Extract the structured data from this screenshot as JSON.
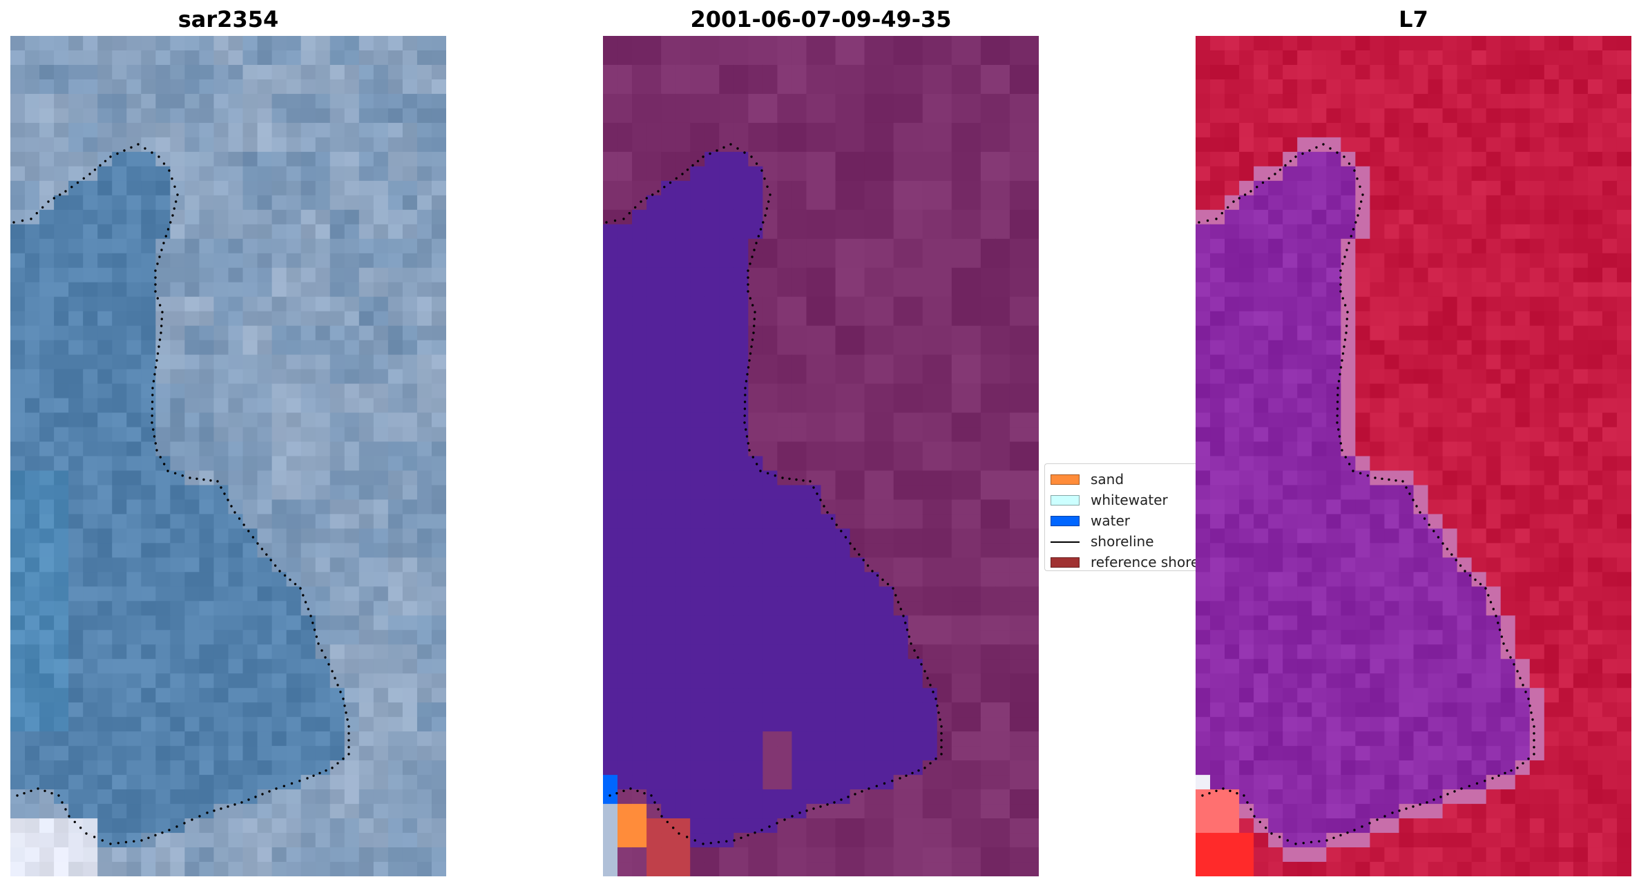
{
  "panels": [
    {
      "title": "sar2354",
      "kind": "rgb"
    },
    {
      "title": "2001-06-07-09-49-35",
      "kind": "classified"
    },
    {
      "title": "L7",
      "kind": "index"
    }
  ],
  "legend": {
    "items": [
      {
        "label": "sand",
        "color": "#ff8c3a",
        "type": "patch"
      },
      {
        "label": "whitewater",
        "color": "#ccffff",
        "type": "patch"
      },
      {
        "label": "water",
        "color": "#0066ff",
        "type": "patch"
      },
      {
        "label": "shoreline",
        "color": "#000000",
        "type": "line"
      },
      {
        "label": "reference shoreline",
        "color": "#a03232",
        "type": "patch"
      }
    ]
  },
  "colors": {
    "rgb_base": "#5a82aa",
    "rgb_bright": "#c8cddc",
    "classified_land": "#7a2e6a",
    "classified_water": "#55229a",
    "index_land": "#c61a42",
    "index_water": "#8b2aa6",
    "shoreline": "#000000"
  }
}
